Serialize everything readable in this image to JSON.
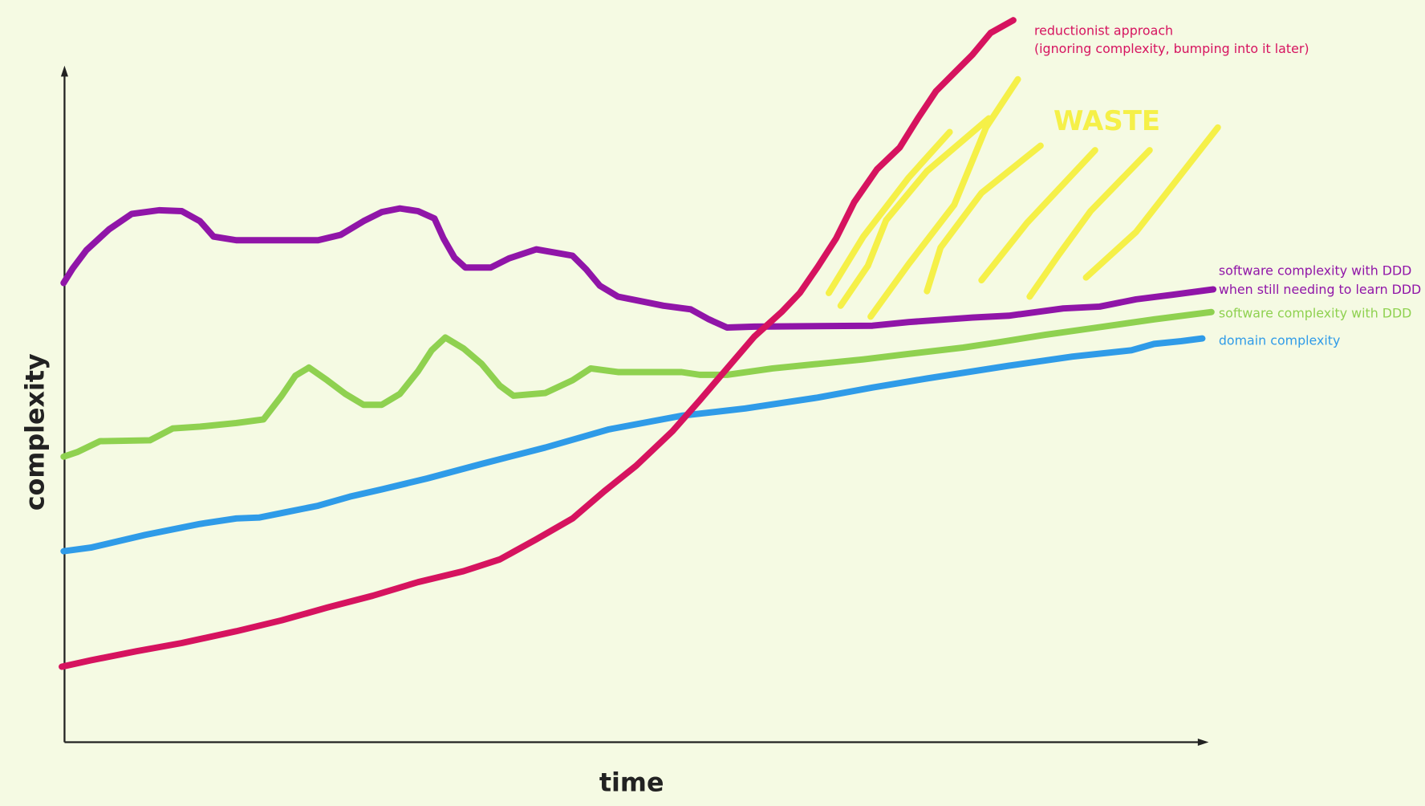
{
  "axes": {
    "y_label": "complexity",
    "x_label": "time"
  },
  "annotation": "WASTE",
  "curves": [
    {
      "label_lines": [
        "reductionist approach",
        "(ignoring complexity, bumping into it later)"
      ]
    },
    {
      "label_lines": [
        "software complexity with DDD",
        "when still needing to learn DDD"
      ]
    },
    {
      "label_lines": [
        "software complexity with DDD"
      ]
    },
    {
      "label_lines": [
        "domain complexity"
      ]
    }
  ]
}
